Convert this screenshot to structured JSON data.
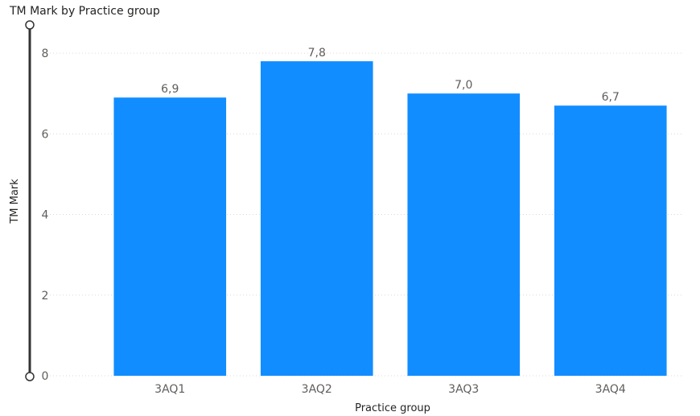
{
  "chart_data": {
    "type": "bar",
    "title": "TM Mark by Practice group",
    "xlabel": "Practice group",
    "ylabel": "TM Mark",
    "categories": [
      "3AQ1",
      "3AQ2",
      "3AQ3",
      "3AQ4"
    ],
    "values": [
      6.9,
      7.8,
      7.0,
      6.7
    ],
    "data_labels": [
      "6,9",
      "7,8",
      "7,0",
      "6,7"
    ],
    "y_ticks": [
      0,
      2,
      4,
      6,
      8
    ],
    "ylim": [
      0,
      8.8
    ],
    "grid": true,
    "legend": "none",
    "bar_color": "#118DFF"
  }
}
